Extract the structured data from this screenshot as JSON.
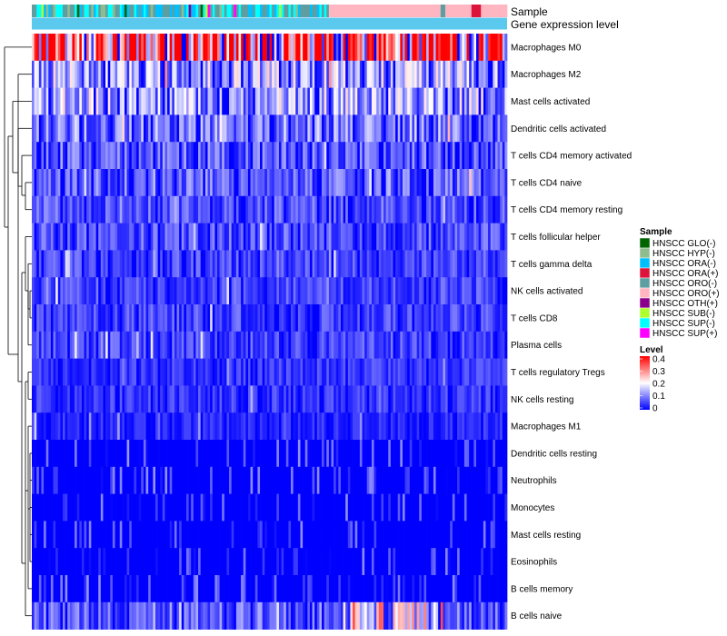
{
  "chart_data": {
    "type": "heatmap",
    "title": "",
    "annotation_tracks": [
      "Sample",
      "Gene expression level"
    ],
    "rows": [
      "Macrophages M0",
      "Macrophages M2",
      "Mast cells activated",
      "Dendritic cells activated",
      "T cells CD4 memory activated",
      "T cells CD4 naive",
      "T cells CD4 memory resting",
      "T cells follicular helper",
      "T cells gamma delta",
      "NK cells activated",
      "T cells CD8",
      "Plasma cells",
      "T cells regulatory  Tregs",
      "NK cells resting",
      "Macrophages M1",
      "Dendritic cells resting",
      "Neutrophils",
      "Monocytes",
      "Mast cells resting",
      "Eosinophils",
      "B cells memory",
      "B cells naive"
    ],
    "row_mean_levels": [
      0.34,
      0.12,
      0.12,
      0.09,
      0.07,
      0.07,
      0.06,
      0.06,
      0.05,
      0.05,
      0.05,
      0.05,
      0.04,
      0.04,
      0.03,
      0.02,
      0.02,
      0.02,
      0.02,
      0.01,
      0.01,
      0.07
    ],
    "column_count": 200,
    "sample_legend": {
      "title": "Sample",
      "entries": [
        {
          "label": "HNSCC GLO(-)",
          "color": "#006400"
        },
        {
          "label": "HNSCC HYP(-)",
          "color": "#8FBC8F"
        },
        {
          "label": "HNSCC ORA(-)",
          "color": "#00BFFF"
        },
        {
          "label": "HNSCC ORA(+)",
          "color": "#DC143C"
        },
        {
          "label": "HNSCC ORO(-)",
          "color": "#5F9EA0"
        },
        {
          "label": "HNSCC ORO(+)",
          "color": "#FFB6C1"
        },
        {
          "label": "HNSCC OTH(+)",
          "color": "#8B008B"
        },
        {
          "label": "HNSCC SUB(-)",
          "color": "#ADFF2F"
        },
        {
          "label": "HNSCC SUP(-)",
          "color": "#00FFFF"
        },
        {
          "label": "HNSCC SUP(+)",
          "color": "#FF00FF"
        }
      ]
    },
    "level_legend": {
      "title": "Level",
      "ticks": [
        "0.4",
        "0.3",
        "0.2",
        "0.1",
        "0"
      ],
      "range": [
        0,
        0.4
      ],
      "colors": {
        "low": "#0000FF",
        "mid": "#FFFFFF",
        "high": "#FF0000"
      }
    },
    "gene_expression_color": "#5BC8EE"
  }
}
